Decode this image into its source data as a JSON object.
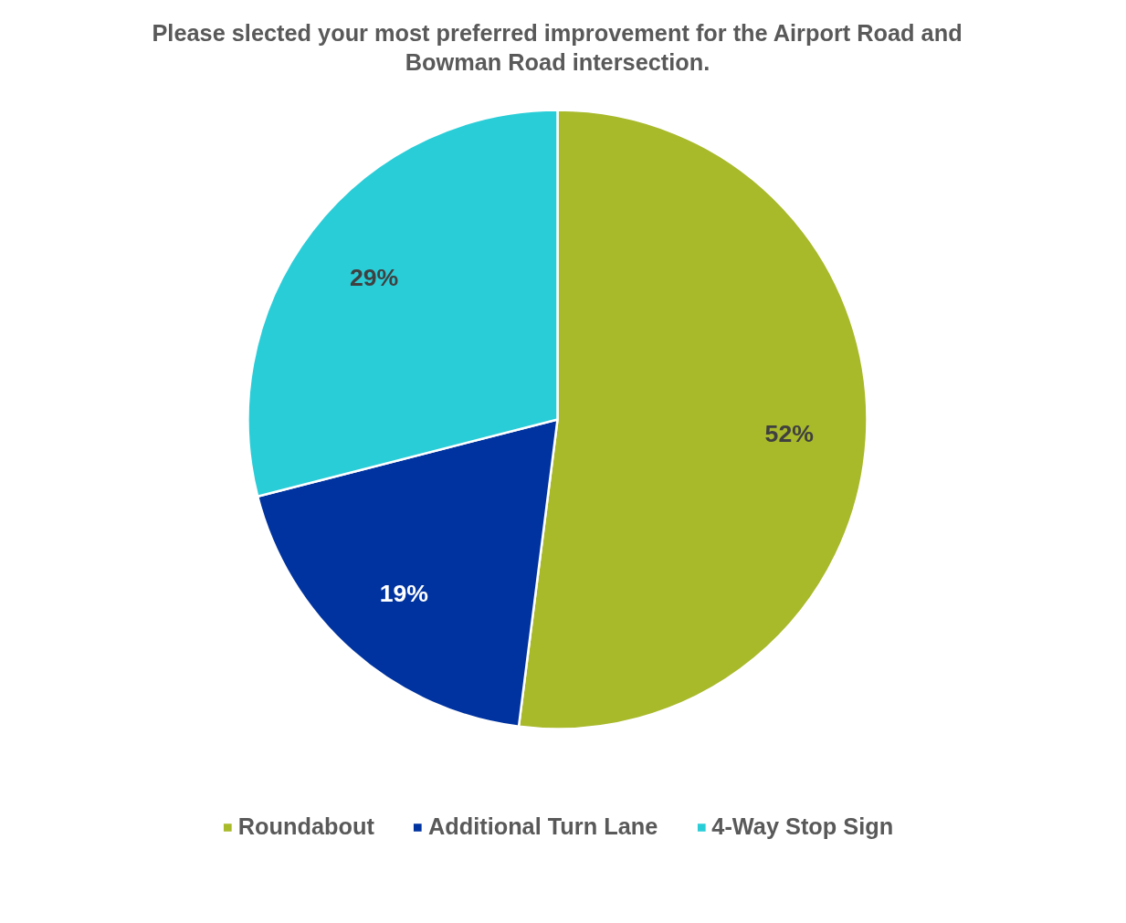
{
  "chart_data": {
    "type": "pie",
    "title": "Please slected your most preferred improvement for the Airport Road and\nBowman Road intersection.",
    "categories": [
      "Roundabout",
      "Additional Turn Lane",
      "4-Way Stop Sign"
    ],
    "values": [
      52,
      19,
      29
    ],
    "colors": [
      "#a8b92a",
      "#0033a0",
      "#29cdd8"
    ],
    "data_labels": true,
    "value_labels": [
      "52%",
      "19%",
      "29%"
    ],
    "legend": "bottom"
  }
}
